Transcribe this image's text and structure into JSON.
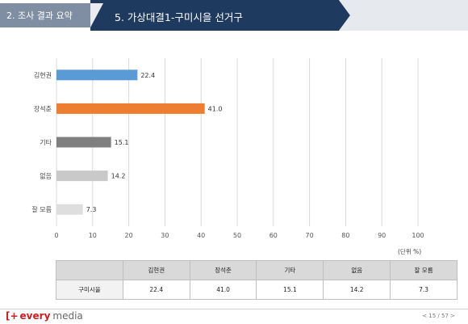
{
  "header": {
    "section_label": "2. 조사 결과 요약",
    "title": "5. 가상대결1-구미시을 선거구"
  },
  "chart_data": {
    "type": "bar",
    "orientation": "horizontal",
    "categories": [
      "김현권",
      "장석춘",
      "기타",
      "없음",
      "잘 모름"
    ],
    "values": [
      22.4,
      41.0,
      15.1,
      14.2,
      7.3
    ],
    "value_labels": [
      "22.4",
      "41.0",
      "15.1",
      "14.2",
      "7.3"
    ],
    "colors": [
      "#5b9bd5",
      "#ed7d31",
      "#7f7f7f",
      "#c9c9c9",
      "#dedede"
    ],
    "xlim": [
      0,
      100
    ],
    "xticks": [
      "0",
      "10",
      "20",
      "30",
      "40",
      "50",
      "60",
      "70",
      "80",
      "90",
      "100"
    ],
    "grid": true,
    "unit": "(단위 %)"
  },
  "table": {
    "columns": [
      "김현권",
      "장석춘",
      "기타",
      "없음",
      "잘 모름"
    ],
    "row_label": "구미시을",
    "values": [
      "22.4",
      "41.0",
      "15.1",
      "14.2",
      "7.3"
    ]
  },
  "footer": {
    "logo_mark": "[+",
    "logo_word1": "every",
    "logo_word2": "media",
    "page": "< 15 / 57 >"
  }
}
